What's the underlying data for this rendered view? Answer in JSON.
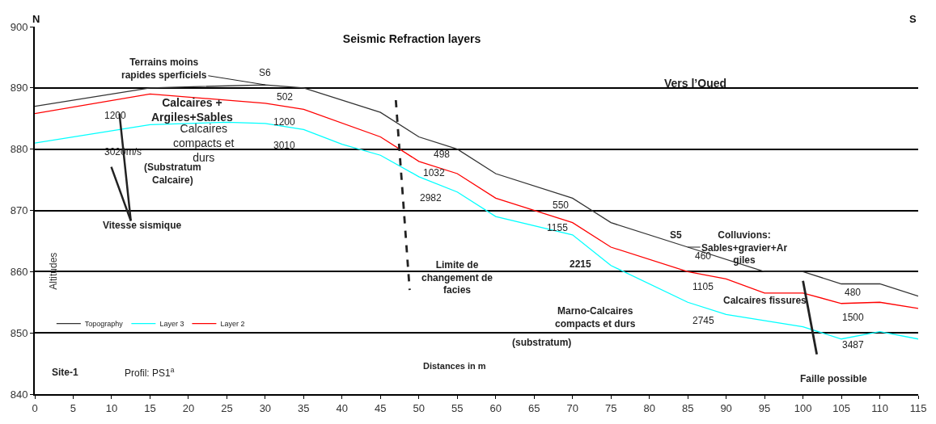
{
  "chart_data": {
    "type": "line",
    "title": "Seismic Refraction layers",
    "xlabel": "Distances in m",
    "ylabel": "Altitudes",
    "series": [
      {
        "name": "Topography",
        "color": "#333333",
        "x": [
          0,
          15,
          30,
          35,
          45,
          50,
          55,
          60,
          70,
          75,
          85,
          95,
          100,
          105,
          110,
          115
        ],
        "values": [
          887,
          890,
          890.5,
          890,
          886,
          882,
          880,
          876,
          872,
          868,
          864,
          860,
          860,
          858,
          858,
          856
        ]
      },
      {
        "name": "Layer 3",
        "color": "#00ffff",
        "x": [
          0,
          15,
          25,
          30,
          35,
          40,
          45,
          50,
          55,
          60,
          70,
          75,
          85,
          90,
          100,
          105,
          110,
          115
        ],
        "values": [
          881,
          884,
          884.4,
          884.2,
          883.2,
          880.8,
          879,
          875.5,
          873,
          869,
          866,
          861,
          855,
          853,
          851,
          849,
          850.2,
          849
        ]
      },
      {
        "name": "Layer 2",
        "color": "#ff0000",
        "x": [
          0,
          15,
          30,
          35,
          45,
          50,
          55,
          60,
          70,
          75,
          85,
          90,
          95,
          100,
          105,
          110,
          115
        ],
        "values": [
          885.8,
          889,
          887.5,
          886.5,
          882,
          878,
          876,
          872,
          868,
          864,
          860,
          858.8,
          856.5,
          856.5,
          854.8,
          855,
          854
        ]
      },
      {
        "color": "#222222",
        "line_style": "dashed",
        "x": [
          47,
          48.8
        ],
        "values": [
          888,
          857
        ]
      },
      {
        "color": "#222222",
        "x": [
          100,
          101.8
        ],
        "values": [
          858.5,
          846.5
        ]
      }
    ],
    "xlim": [
      0,
      115
    ],
    "xticks": [
      0,
      5,
      10,
      15,
      20,
      25,
      30,
      35,
      40,
      45,
      50,
      55,
      60,
      65,
      70,
      75,
      80,
      85,
      90,
      95,
      100,
      105,
      110,
      115
    ],
    "ylim": [
      840,
      900
    ],
    "yticks": [
      840,
      850,
      860,
      870,
      880,
      890,
      900
    ],
    "grid": "y",
    "legend": "bottom left",
    "marker": "none",
    "line_style": "solid",
    "annotations": [
      "Faille possible",
      "Limite de\nchangement de\nfacies",
      "Vitesse sismique",
      {
        "text": "Terrains moins\nrapides sperficiels",
        "x": 30,
        "y": 890.5
      },
      {
        "text": "Colluvions:\nSables+gravier+Ar\ngiles",
        "x": 85,
        "y": 864
      },
      "N",
      "S",
      "S6",
      "S5",
      "Vers l’Oued",
      "502",
      "1200",
      "3010",
      "1200",
      "3020m/s",
      "498",
      "1032",
      "2982",
      "550",
      "1155",
      "2215",
      "460",
      "1105",
      "2745",
      "480",
      "1500",
      "3487",
      "Calcaires +\nArgiles+Sables",
      "Calcaires\ncompacts et\ndurs",
      "(Substratum\nCalcaire)",
      "Calcaires fissures",
      "Marno-Calcaires\ncompacts et durs",
      "(substratum)",
      "Site-1",
      "Profil: PS1$^{a}$"
    ]
  }
}
